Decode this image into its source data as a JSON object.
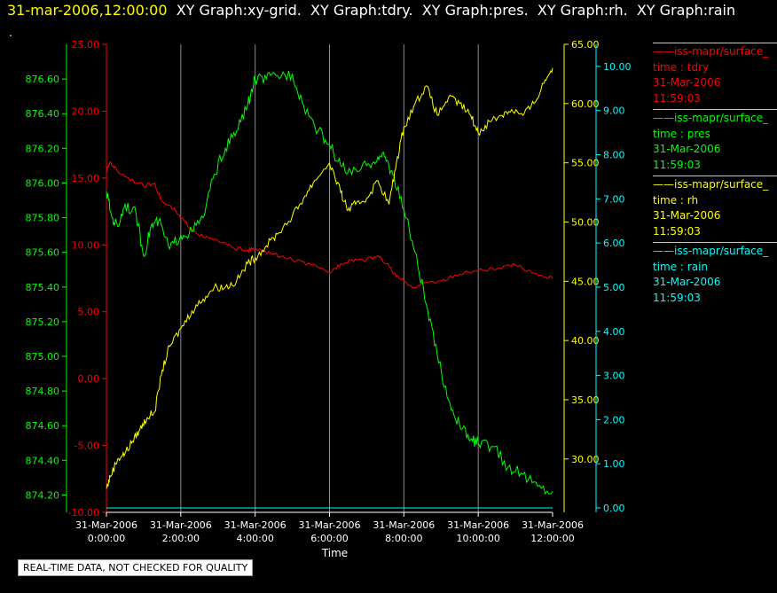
{
  "header": {
    "timestamp": "31-mar-2006,12:00:00",
    "graphs": [
      "XY Graph:xy-grid.",
      "XY Graph:tdry.",
      "XY Graph:pres.",
      "XY Graph:rh.",
      "XY Graph:rain"
    ],
    "dot": "."
  },
  "legend": [
    {
      "name": "iss-mapr/surface_",
      "var": "time : tdry",
      "date": "31-Mar-2006",
      "time": "11:59:03",
      "color": "#ff0000"
    },
    {
      "name": "iss-mapr/surface_",
      "var": "time : pres",
      "date": "31-Mar-2006",
      "time": "11:59:03",
      "color": "#00ff00"
    },
    {
      "name": "iss-mapr/surface_",
      "var": "time : rh",
      "date": "31-Mar-2006",
      "time": "11:59:03",
      "color": "#ffff00"
    },
    {
      "name": "iss-mapr/surface_",
      "var": "time : rain",
      "date": "31-Mar-2006",
      "time": "11:59:03",
      "color": "#00ffff"
    }
  ],
  "quality_note": "REAL-TIME DATA, NOT CHECKED FOR QUALITY",
  "chart_data": {
    "type": "line",
    "xlabel": "Time",
    "xlim_hours": [
      0,
      12
    ],
    "x_ticks": [
      {
        "h": 0,
        "date": "31-Mar-2006",
        "time": "0:00:00"
      },
      {
        "h": 2,
        "date": "31-Mar-2006",
        "time": "2:00:00"
      },
      {
        "h": 4,
        "date": "31-Mar-2006",
        "time": "4:00:00"
      },
      {
        "h": 6,
        "date": "31-Mar-2006",
        "time": "6:00:00"
      },
      {
        "h": 8,
        "date": "31-Mar-2006",
        "time": "8:00:00"
      },
      {
        "h": 10,
        "date": "31-Mar-2006",
        "time": "10:00:00"
      },
      {
        "h": 12,
        "date": "31-Mar-2006",
        "time": "12:00:00"
      }
    ],
    "grid": true,
    "axes": {
      "pres": {
        "side": "left-outer",
        "color": "#00ff00",
        "lim": [
          874.1,
          876.8
        ],
        "ticks": [
          "874.20",
          "874.40",
          "874.60",
          "874.80",
          "875.00",
          "875.20",
          "875.40",
          "875.60",
          "875.80",
          "876.00",
          "876.20",
          "876.40",
          "876.60"
        ]
      },
      "tdry": {
        "side": "left-inner",
        "color": "#ff0000",
        "lim": [
          -10,
          25
        ],
        "ticks": [
          "-10.00",
          "-5.00",
          "0.00",
          "5.00",
          "10.00",
          "15.00",
          "20.00",
          "25.00"
        ]
      },
      "rh": {
        "side": "right-inner",
        "color": "#ffff00",
        "lim": [
          25.5,
          65
        ],
        "ticks": [
          "30.00",
          "35.00",
          "40.00",
          "45.00",
          "50.00",
          "55.00",
          "60.00",
          "65.00"
        ]
      },
      "rain": {
        "side": "right-outer",
        "color": "#00ffff",
        "lim": [
          -0.1,
          10.5
        ],
        "ticks": [
          "0.00",
          "1.00",
          "2.00",
          "3.00",
          "4.00",
          "5.00",
          "6.00",
          "7.00",
          "8.00",
          "9.00",
          "10.00"
        ]
      }
    },
    "series": [
      {
        "name": "tdry",
        "color": "#ff0000",
        "x": [
          0,
          0.1,
          0.3,
          0.6,
          1,
          1.3,
          1.5,
          1.8,
          2,
          2.3,
          2.6,
          3,
          3.4,
          3.8,
          4,
          4.5,
          5,
          5.5,
          6,
          6.3,
          6.6,
          7,
          7.3,
          7.6,
          7.8,
          8,
          8.3,
          8.6,
          9,
          9.5,
          10,
          10.5,
          11,
          11.5,
          12
        ],
        "values": [
          15.5,
          16.2,
          15.5,
          15.0,
          14.4,
          14.6,
          13.2,
          12.7,
          12.0,
          11.2,
          10.6,
          10.3,
          9.8,
          9.6,
          9.7,
          9.3,
          8.9,
          8.5,
          7.9,
          8.6,
          8.9,
          8.9,
          9.2,
          8.4,
          7.6,
          7.3,
          6.8,
          7.2,
          7.3,
          7.8,
          8.1,
          8.2,
          8.5,
          7.9,
          7.5
        ]
      },
      {
        "name": "pres",
        "color": "#00ff00",
        "x": [
          0,
          0.15,
          0.3,
          0.5,
          0.8,
          1,
          1.2,
          1.4,
          1.7,
          2,
          2.3,
          2.6,
          2.9,
          3.2,
          3.5,
          3.8,
          4,
          4.3,
          4.6,
          5,
          5.3,
          5.7,
          6,
          6.3,
          6.6,
          7,
          7.3,
          7.5,
          7.7,
          8,
          8.3,
          8.6,
          8.9,
          9.2,
          9.5,
          9.8,
          10,
          10.4,
          10.8,
          11.2,
          11.6,
          12
        ],
        "values": [
          875.95,
          875.8,
          875.75,
          875.88,
          875.82,
          875.58,
          875.75,
          875.78,
          875.62,
          875.7,
          875.72,
          875.8,
          876.05,
          876.2,
          876.3,
          876.45,
          876.6,
          876.6,
          876.62,
          876.63,
          876.45,
          876.3,
          876.22,
          876.1,
          876.05,
          876.1,
          876.15,
          876.15,
          876.05,
          875.85,
          875.6,
          875.3,
          875.0,
          874.75,
          874.6,
          874.52,
          874.5,
          874.48,
          874.36,
          874.32,
          874.25,
          874.22
        ]
      },
      {
        "name": "rh",
        "color": "#ffff00",
        "x": [
          0,
          0.1,
          0.3,
          0.5,
          0.7,
          0.9,
          1.1,
          1.3,
          1.5,
          1.7,
          2,
          2.3,
          2.6,
          2.9,
          3.2,
          3.5,
          3.8,
          4,
          4.3,
          4.6,
          5,
          5.3,
          5.6,
          6,
          6.3,
          6.5,
          6.7,
          7,
          7.3,
          7.6,
          7.8,
          8,
          8.3,
          8.6,
          8.9,
          9.2,
          9.5,
          9.8,
          10,
          10.3,
          10.6,
          10.9,
          11.2,
          11.5,
          11.8,
          12
        ],
        "values": [
          27.5,
          28.5,
          30.0,
          30.5,
          31.5,
          32.5,
          33.5,
          34.0,
          37.5,
          39.5,
          41.0,
          42.5,
          43.5,
          44.5,
          44.5,
          45.0,
          46.5,
          47.0,
          48.0,
          49.0,
          50.5,
          52.0,
          53.5,
          55.0,
          52.5,
          51.0,
          51.5,
          52.0,
          53.5,
          51.5,
          55.0,
          58.0,
          60.0,
          61.5,
          59.0,
          60.5,
          60.0,
          59.0,
          57.5,
          58.5,
          59.0,
          59.5,
          59.0,
          60.0,
          62.0,
          63.0
        ]
      },
      {
        "name": "rain",
        "color": "#00ffff",
        "x": [
          0,
          12
        ],
        "values": [
          0,
          0
        ]
      }
    ]
  }
}
